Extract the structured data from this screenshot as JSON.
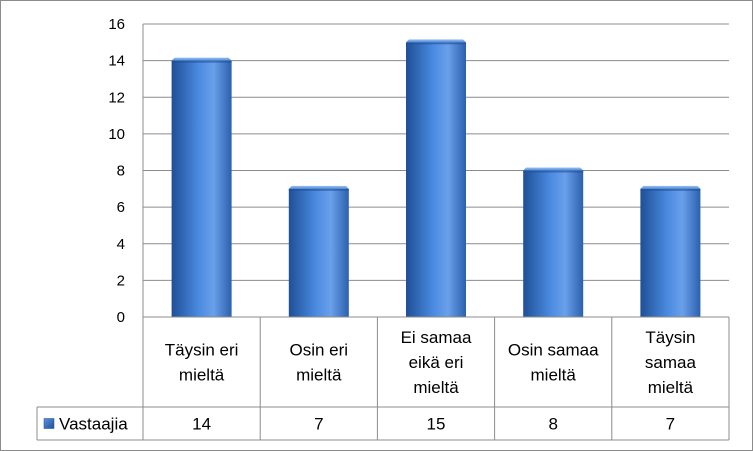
{
  "chart_data": {
    "type": "bar",
    "categories": [
      [
        "Täysin eri",
        "mieltä"
      ],
      [
        "Osin eri",
        "mieltä"
      ],
      [
        "Ei samaa",
        "eikä eri",
        "mieltä"
      ],
      [
        "Osin samaa",
        "mieltä"
      ],
      [
        "Täysin",
        "samaa",
        "mieltä"
      ]
    ],
    "series": [
      {
        "name": "Vastaajia",
        "values": [
          14,
          7,
          15,
          8,
          7
        ]
      }
    ],
    "ylim": [
      0,
      16
    ],
    "yticks": [
      0,
      2,
      4,
      6,
      8,
      10,
      12,
      14,
      16
    ],
    "grid": true,
    "legend": "data-table-left",
    "data_table": true,
    "colors": {
      "bar": "#3f7dd1",
      "bar_dark": "#1f4f96",
      "bar_light": "#7fb0ee",
      "grid": "#8c8c8c"
    }
  }
}
